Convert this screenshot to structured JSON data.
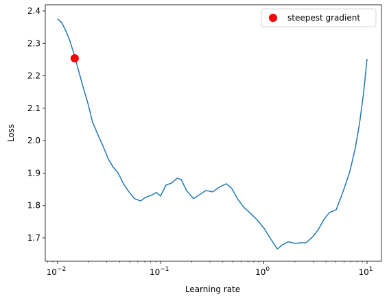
{
  "chart_data": {
    "type": "line",
    "xlabel": "Learning rate",
    "ylabel": "Loss",
    "xscale": "log",
    "x": [
      0.01,
      0.011,
      0.012,
      0.0132,
      0.0145,
      0.0161,
      0.0179,
      0.0196,
      0.0218,
      0.0243,
      0.0275,
      0.0311,
      0.0346,
      0.0385,
      0.0435,
      0.0492,
      0.0556,
      0.0638,
      0.0711,
      0.0803,
      0.0908,
      0.0995,
      0.1125,
      0.127,
      0.144,
      0.158,
      0.178,
      0.208,
      0.242,
      0.274,
      0.319,
      0.372,
      0.434,
      0.49,
      0.554,
      0.636,
      0.729,
      0.851,
      0.993,
      1.157,
      1.349,
      1.522,
      1.722,
      2.006,
      2.266,
      2.563,
      2.987,
      3.377,
      3.818,
      4.316,
      5.027,
      5.68,
      6.222,
      6.82,
      7.72,
      8.46,
      9.27,
      10
    ],
    "series": [
      {
        "name": "loss",
        "color": "#1f77b4",
        "values": [
          2.375,
          2.364,
          2.339,
          2.307,
          2.265,
          2.212,
          2.159,
          2.117,
          2.058,
          2.022,
          1.984,
          1.943,
          1.918,
          1.901,
          1.867,
          1.842,
          1.821,
          1.814,
          1.825,
          1.831,
          1.84,
          1.829,
          1.863,
          1.869,
          1.884,
          1.88,
          1.846,
          1.821,
          1.835,
          1.846,
          1.842,
          1.857,
          1.867,
          1.852,
          1.821,
          1.795,
          1.778,
          1.757,
          1.732,
          1.698,
          1.666,
          1.679,
          1.688,
          1.683,
          1.685,
          1.685,
          1.704,
          1.726,
          1.757,
          1.778,
          1.787,
          1.831,
          1.867,
          1.905,
          1.979,
          2.053,
          2.148,
          2.252
        ]
      }
    ],
    "points": [
      {
        "name": "steepest gradient",
        "color": "#ff0000",
        "x": 0.01466,
        "y": 2.254
      }
    ],
    "xlim": [
      0.0076,
      13.8
    ],
    "ylim": [
      1.628,
      2.419
    ],
    "xticks": [
      {
        "value": 0.01,
        "label": "10",
        "exponent": "−2"
      },
      {
        "value": 0.1,
        "label": "10",
        "exponent": "−1"
      },
      {
        "value": 1,
        "label": "10",
        "exponent": "0"
      },
      {
        "value": 10,
        "label": "10",
        "exponent": "1"
      }
    ],
    "yticks": [
      {
        "value": 1.7,
        "label": "1.7"
      },
      {
        "value": 1.8,
        "label": "1.8"
      },
      {
        "value": 1.9,
        "label": "1.9"
      },
      {
        "value": 2.0,
        "label": "2.0"
      },
      {
        "value": 2.1,
        "label": "2.1"
      },
      {
        "value": 2.2,
        "label": "2.2"
      },
      {
        "value": 2.3,
        "label": "2.3"
      },
      {
        "value": 2.4,
        "label": "2.4"
      }
    ],
    "legend": "upper right"
  }
}
